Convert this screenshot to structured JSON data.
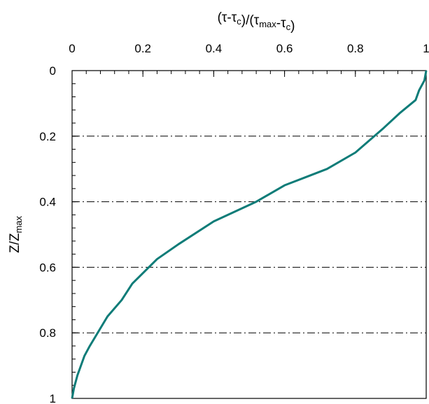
{
  "chart_data": {
    "type": "line",
    "title": "",
    "xlabel_parts": [
      {
        "text": "(",
        "sub": false
      },
      {
        "text": "τ",
        "sub": false
      },
      {
        "text": "-",
        "sub": false
      },
      {
        "text": "τ",
        "sub": false
      },
      {
        "text": "c",
        "sub": true
      },
      {
        "text": ")/(",
        "sub": false
      },
      {
        "text": "τ",
        "sub": false
      },
      {
        "text": "max",
        "sub": true
      },
      {
        "text": "-",
        "sub": false
      },
      {
        "text": "τ",
        "sub": false
      },
      {
        "text": "c",
        "sub": true
      },
      {
        "text": ")",
        "sub": false
      }
    ],
    "ylabel_parts": [
      {
        "text": "Z/Z",
        "sub": false
      },
      {
        "text": "max",
        "sub": true
      }
    ],
    "x_axis_position": "top",
    "y_axis_inverted": true,
    "xlim": [
      0,
      1
    ],
    "ylim": [
      0,
      1
    ],
    "x_ticks": [
      "0",
      "0.2",
      "0.4",
      "0.6",
      "0.8",
      "1"
    ],
    "x_tick_values": [
      0,
      0.2,
      0.4,
      0.6,
      0.8,
      1
    ],
    "y_ticks": [
      "0",
      "0.2",
      "0.4",
      "0.6",
      "0.8",
      "1"
    ],
    "y_tick_values": [
      0,
      0.2,
      0.4,
      0.6,
      0.8,
      1
    ],
    "grid": "dash-dot horizontal at major y ticks",
    "series": [
      {
        "color": "#0e7c78",
        "points": [
          [
            1.0,
            0.0
          ],
          [
            0.995,
            0.03
          ],
          [
            0.98,
            0.06
          ],
          [
            0.97,
            0.09
          ],
          [
            0.925,
            0.13
          ],
          [
            0.88,
            0.175
          ],
          [
            0.8,
            0.25
          ],
          [
            0.72,
            0.3
          ],
          [
            0.66,
            0.325
          ],
          [
            0.6,
            0.35
          ],
          [
            0.52,
            0.4
          ],
          [
            0.4,
            0.46
          ],
          [
            0.3,
            0.53
          ],
          [
            0.24,
            0.575
          ],
          [
            0.17,
            0.65
          ],
          [
            0.14,
            0.7
          ],
          [
            0.1,
            0.75
          ],
          [
            0.05,
            0.84
          ],
          [
            0.035,
            0.87
          ],
          [
            0.015,
            0.93
          ],
          [
            0.005,
            0.97
          ],
          [
            0.0,
            1.0
          ]
        ]
      }
    ]
  }
}
